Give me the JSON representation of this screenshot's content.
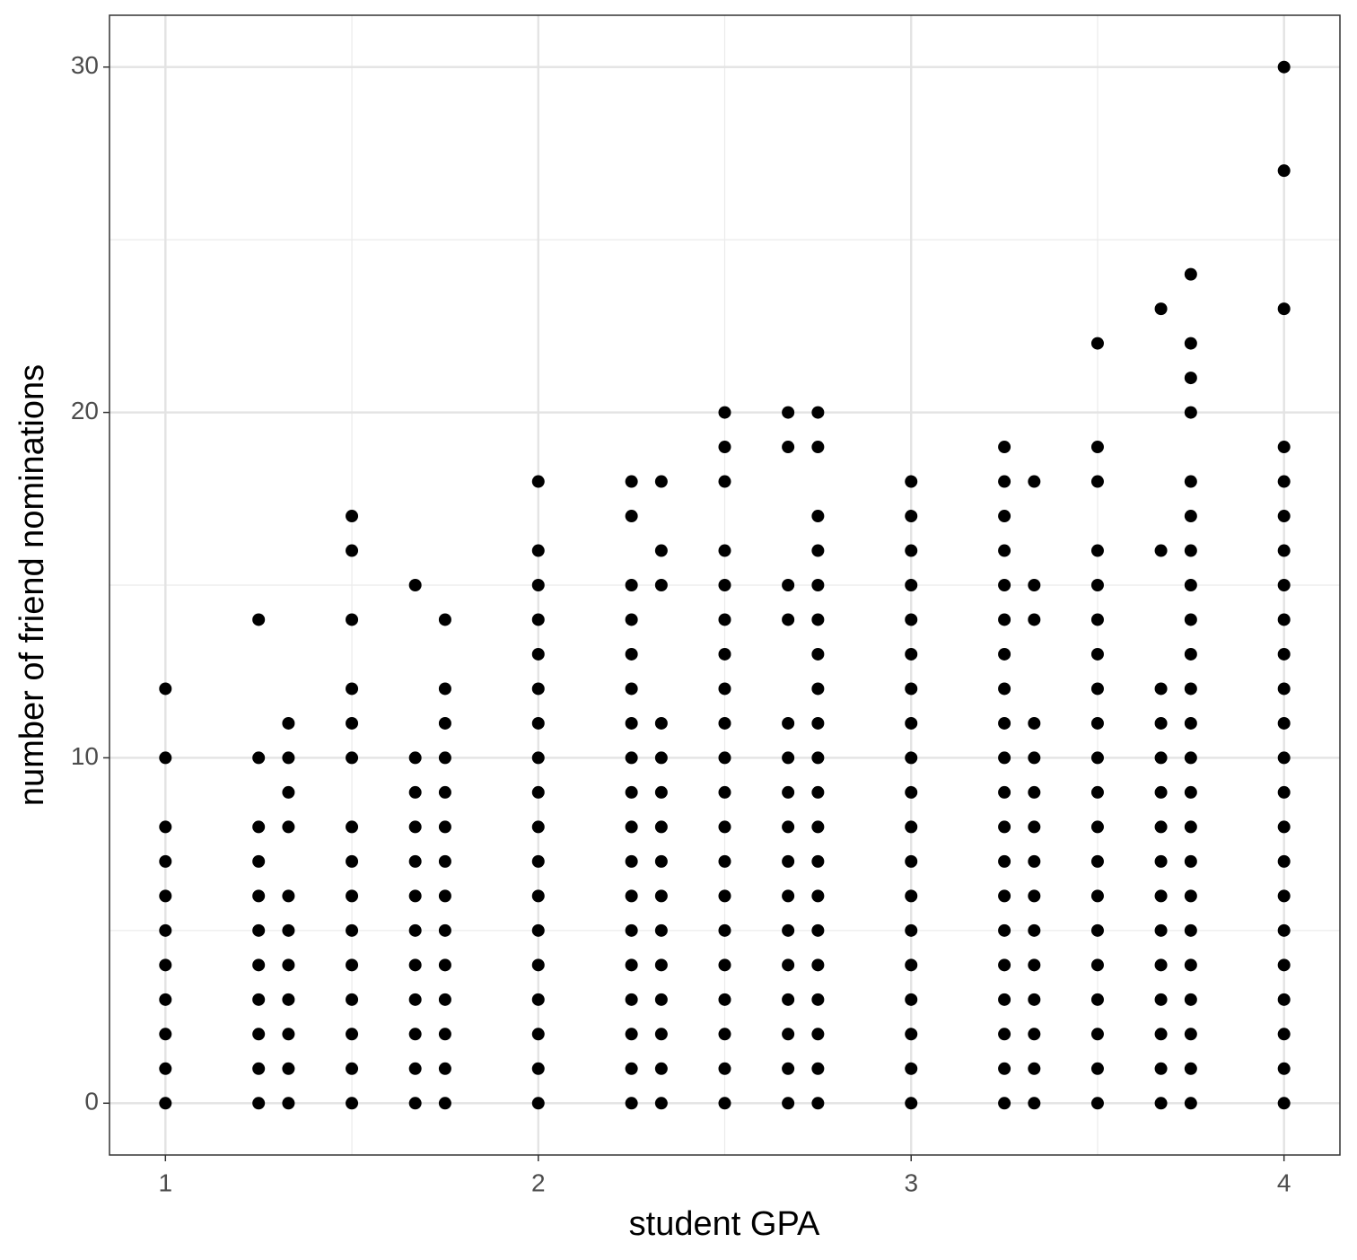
{
  "chart_data": {
    "type": "scatter",
    "x_label": "student GPA",
    "y_label": "number of friend nominations",
    "color": "#000000",
    "grid": true,
    "xlim": [
      0.85,
      4.15
    ],
    "xticks": [
      1,
      2,
      3,
      4
    ],
    "xminor": [
      1.5,
      2.5,
      3.5
    ],
    "ylim": [
      -1.5,
      31.5
    ],
    "yticks": [
      0,
      10,
      20,
      30
    ],
    "yminor": [
      5,
      15,
      25
    ],
    "x": [
      1,
      1,
      1,
      1,
      1,
      1,
      1,
      1,
      1,
      1,
      1,
      1.25,
      1.25,
      1.25,
      1.25,
      1.25,
      1.25,
      1.25,
      1.25,
      1.25,
      1.25,
      1.25,
      1.33,
      1.33,
      1.33,
      1.33,
      1.33,
      1.33,
      1.33,
      1.33,
      1.33,
      1.33,
      1.33,
      1.5,
      1.5,
      1.5,
      1.5,
      1.5,
      1.5,
      1.5,
      1.5,
      1.5,
      1.5,
      1.5,
      1.5,
      1.5,
      1.5,
      1.5,
      1.67,
      1.67,
      1.67,
      1.67,
      1.67,
      1.67,
      1.67,
      1.67,
      1.67,
      1.67,
      1.67,
      1.67,
      1.75,
      1.75,
      1.75,
      1.75,
      1.75,
      1.75,
      1.75,
      1.75,
      1.75,
      1.75,
      1.75,
      1.75,
      1.75,
      1.75,
      2,
      2,
      2,
      2,
      2,
      2,
      2,
      2,
      2,
      2,
      2,
      2,
      2,
      2,
      2,
      2,
      2,
      2,
      2.25,
      2.25,
      2.25,
      2.25,
      2.25,
      2.25,
      2.25,
      2.25,
      2.25,
      2.25,
      2.25,
      2.25,
      2.25,
      2.25,
      2.25,
      2.25,
      2.25,
      2.25,
      2.33,
      2.33,
      2.33,
      2.33,
      2.33,
      2.33,
      2.33,
      2.33,
      2.33,
      2.33,
      2.33,
      2.33,
      2.33,
      2.33,
      2.33,
      2.5,
      2.5,
      2.5,
      2.5,
      2.5,
      2.5,
      2.5,
      2.5,
      2.5,
      2.5,
      2.5,
      2.5,
      2.5,
      2.5,
      2.5,
      2.5,
      2.5,
      2.5,
      2.5,
      2.5,
      2.67,
      2.67,
      2.67,
      2.67,
      2.67,
      2.67,
      2.67,
      2.67,
      2.67,
      2.67,
      2.67,
      2.67,
      2.67,
      2.67,
      2.67,
      2.67,
      2.75,
      2.75,
      2.75,
      2.75,
      2.75,
      2.75,
      2.75,
      2.75,
      2.75,
      2.75,
      2.75,
      2.75,
      2.75,
      2.75,
      2.75,
      2.75,
      2.75,
      2.75,
      2.75,
      2.75,
      3,
      3,
      3,
      3,
      3,
      3,
      3,
      3,
      3,
      3,
      3,
      3,
      3,
      3,
      3,
      3,
      3,
      3,
      3,
      3.25,
      3.25,
      3.25,
      3.25,
      3.25,
      3.25,
      3.25,
      3.25,
      3.25,
      3.25,
      3.25,
      3.25,
      3.25,
      3.25,
      3.25,
      3.25,
      3.25,
      3.25,
      3.25,
      3.25,
      3.33,
      3.33,
      3.33,
      3.33,
      3.33,
      3.33,
      3.33,
      3.33,
      3.33,
      3.33,
      3.33,
      3.33,
      3.33,
      3.33,
      3.33,
      3.5,
      3.5,
      3.5,
      3.5,
      3.5,
      3.5,
      3.5,
      3.5,
      3.5,
      3.5,
      3.5,
      3.5,
      3.5,
      3.5,
      3.5,
      3.5,
      3.5,
      3.5,
      3.5,
      3.5,
      3.67,
      3.67,
      3.67,
      3.67,
      3.67,
      3.67,
      3.67,
      3.67,
      3.67,
      3.67,
      3.67,
      3.67,
      3.67,
      3.67,
      3.67,
      3.75,
      3.75,
      3.75,
      3.75,
      3.75,
      3.75,
      3.75,
      3.75,
      3.75,
      3.75,
      3.75,
      3.75,
      3.75,
      3.75,
      3.75,
      3.75,
      3.75,
      3.75,
      3.75,
      3.75,
      3.75,
      3.75,
      3.75,
      4,
      4,
      4,
      4,
      4,
      4,
      4,
      4,
      4,
      4,
      4,
      4,
      4,
      4,
      4,
      4,
      4,
      4,
      4,
      4,
      4,
      4,
      4
    ],
    "values": [
      0,
      1,
      2,
      3,
      4,
      5,
      6,
      7,
      8,
      10,
      12,
      0,
      1,
      2,
      3,
      4,
      5,
      6,
      7,
      8,
      10,
      14,
      0,
      1,
      2,
      3,
      4,
      5,
      6,
      8,
      9,
      10,
      11,
      0,
      1,
      2,
      3,
      4,
      5,
      6,
      7,
      8,
      10,
      11,
      12,
      14,
      16,
      17,
      0,
      1,
      2,
      3,
      4,
      5,
      6,
      7,
      8,
      9,
      10,
      15,
      0,
      1,
      2,
      3,
      4,
      5,
      6,
      7,
      8,
      9,
      10,
      11,
      12,
      14,
      0,
      1,
      2,
      3,
      4,
      5,
      6,
      7,
      8,
      9,
      10,
      11,
      12,
      13,
      14,
      15,
      16,
      18,
      0,
      1,
      2,
      3,
      4,
      5,
      6,
      7,
      8,
      9,
      10,
      11,
      12,
      13,
      14,
      15,
      17,
      18,
      0,
      1,
      2,
      3,
      4,
      5,
      6,
      7,
      8,
      9,
      10,
      11,
      15,
      16,
      18,
      0,
      1,
      2,
      3,
      4,
      5,
      6,
      7,
      8,
      9,
      10,
      11,
      12,
      13,
      14,
      15,
      16,
      18,
      19,
      20,
      0,
      1,
      2,
      3,
      4,
      5,
      6,
      7,
      8,
      9,
      10,
      11,
      14,
      15,
      19,
      20,
      0,
      1,
      2,
      3,
      4,
      5,
      6,
      7,
      8,
      9,
      10,
      11,
      12,
      13,
      14,
      15,
      16,
      17,
      19,
      20,
      0,
      1,
      2,
      3,
      4,
      5,
      6,
      7,
      8,
      9,
      10,
      11,
      12,
      13,
      14,
      15,
      16,
      17,
      18,
      0,
      1,
      2,
      3,
      4,
      5,
      6,
      7,
      8,
      9,
      10,
      11,
      12,
      13,
      14,
      15,
      16,
      17,
      18,
      19,
      0,
      1,
      2,
      3,
      4,
      5,
      6,
      7,
      8,
      9,
      10,
      11,
      14,
      15,
      18,
      0,
      1,
      2,
      3,
      4,
      5,
      6,
      7,
      8,
      9,
      10,
      11,
      12,
      13,
      14,
      15,
      16,
      18,
      19,
      22,
      0,
      1,
      2,
      3,
      4,
      5,
      6,
      7,
      8,
      9,
      10,
      11,
      12,
      16,
      23,
      0,
      1,
      2,
      3,
      4,
      5,
      6,
      7,
      8,
      9,
      10,
      11,
      12,
      13,
      14,
      15,
      16,
      17,
      18,
      20,
      21,
      22,
      24,
      0,
      1,
      2,
      3,
      4,
      5,
      6,
      7,
      8,
      9,
      10,
      11,
      12,
      13,
      14,
      15,
      16,
      17,
      18,
      19,
      23,
      27,
      30
    ]
  }
}
